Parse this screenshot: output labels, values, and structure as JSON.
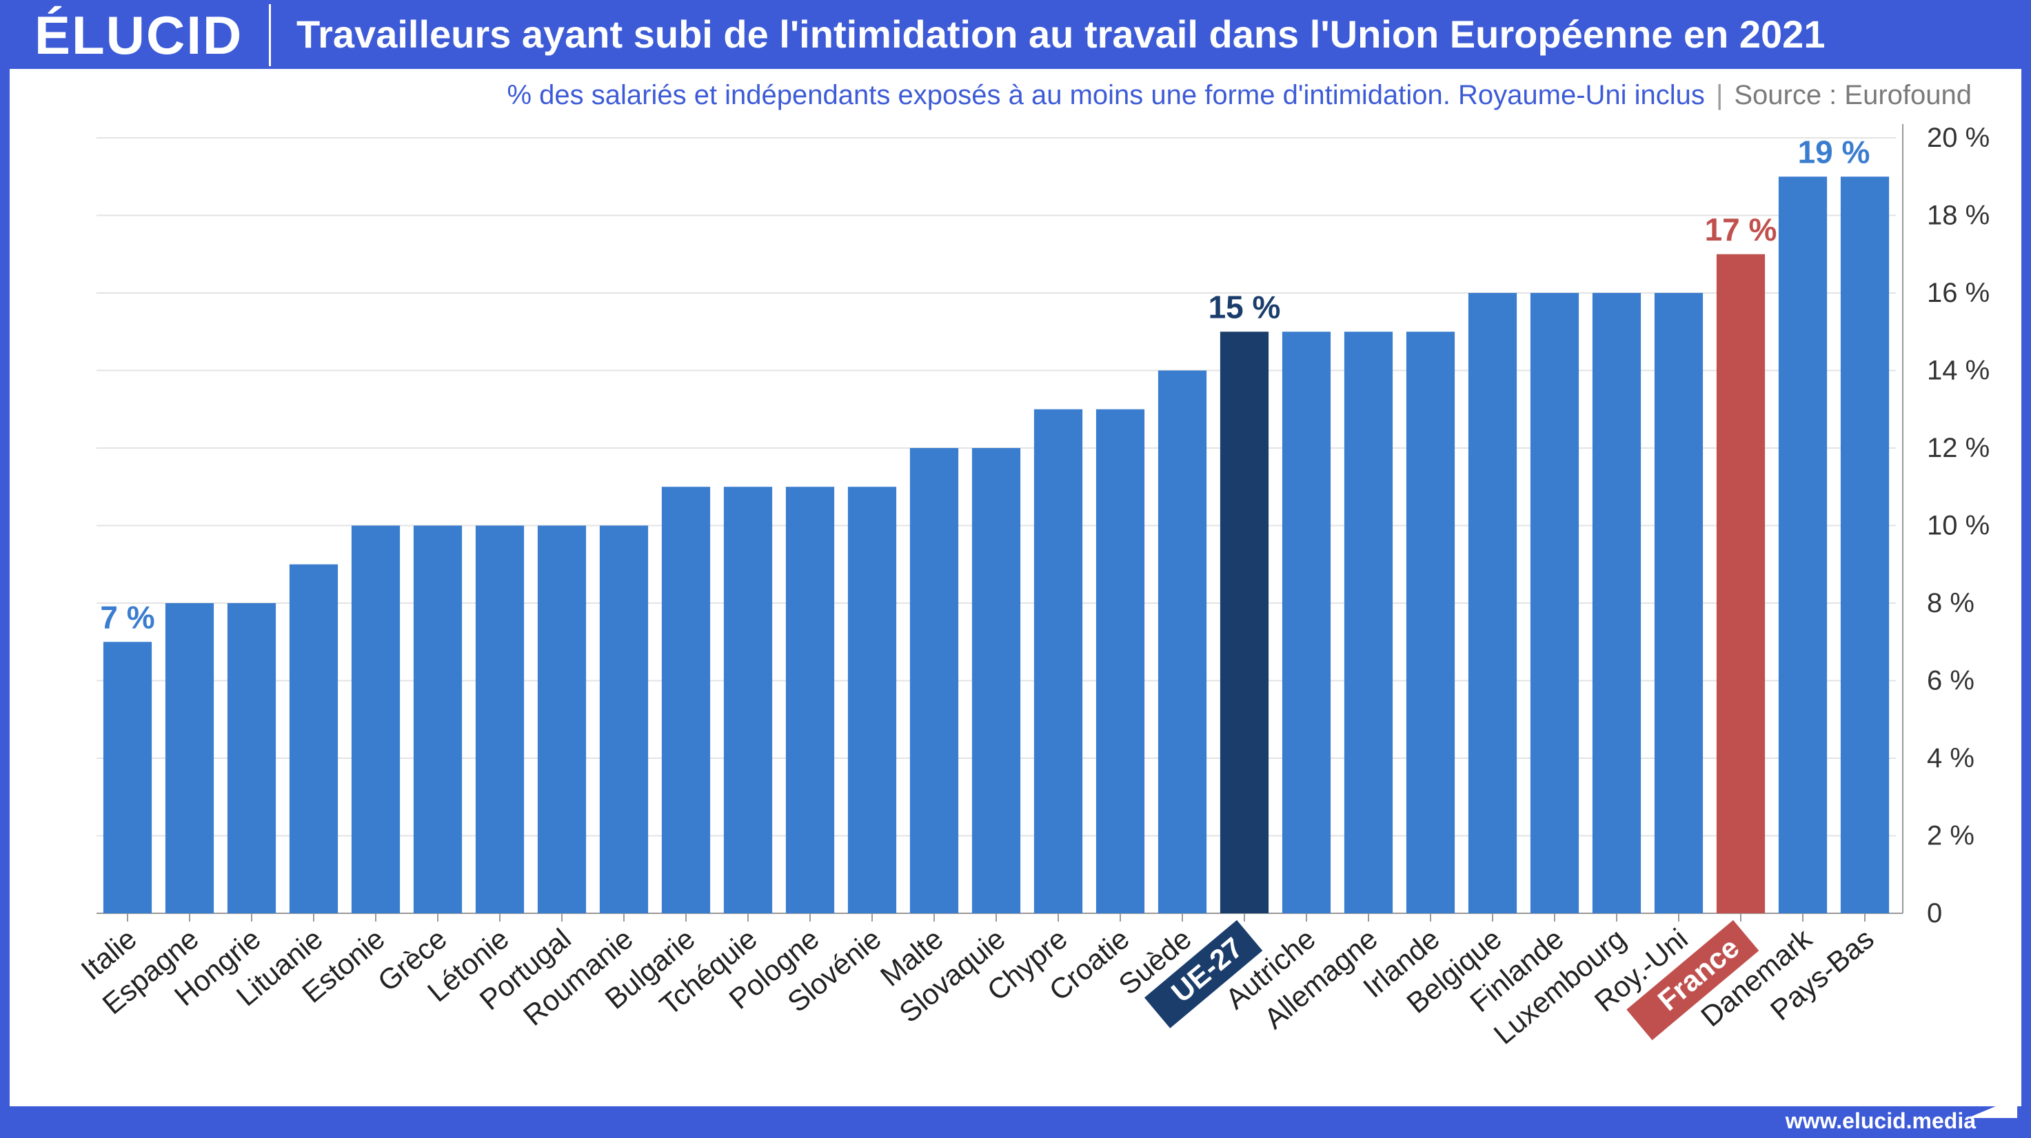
{
  "brand": {
    "logo": "ÉLUCID",
    "url": "www.elucid.media"
  },
  "header": {
    "title": "Travailleurs ayant subi de l'intimidation au travail dans l'Union Européenne en 2021"
  },
  "subtitle": {
    "description": "% des salariés et indépendants exposés à au moins une forme d'intimidation. Royaume-Uni inclus",
    "separator": "|",
    "source": "Source : Eurofound"
  },
  "colors": {
    "frame": "#3d5bd6",
    "bar": "#3a7dcf",
    "highlight_eu": "#1a3d6b",
    "highlight_france": "#c0504d",
    "label_default": "#3a7dcf"
  },
  "chart_data": {
    "type": "bar",
    "categories": [
      "Italie",
      "Espagne",
      "Hongrie",
      "Lituanie",
      "Estonie",
      "Grèce",
      "Létonie",
      "Portugal",
      "Roumanie",
      "Bulgarie",
      "Tchéquie",
      "Pologne",
      "Slovénie",
      "Malte",
      "Slovaquie",
      "Chypre",
      "Croatie",
      "Suède",
      "UE-27",
      "Autriche",
      "Allemagne",
      "Irlande",
      "Belgique",
      "Finlande",
      "Luxembourg",
      "Roy.-Uni",
      "France",
      "Danemark",
      "Pays-Bas"
    ],
    "values": [
      7,
      8,
      8,
      9,
      10,
      10,
      10,
      10,
      10,
      11,
      11,
      11,
      11,
      12,
      12,
      13,
      13,
      14,
      15,
      15,
      15,
      15,
      16,
      16,
      16,
      16,
      17,
      19,
      19
    ],
    "ylim": [
      0,
      20
    ],
    "yticks": [
      0,
      2,
      4,
      6,
      8,
      10,
      12,
      14,
      16,
      18,
      20
    ],
    "ytick_labels": [
      "0",
      "2 %",
      "4 %",
      "6 %",
      "8 %",
      "10 %",
      "12 %",
      "14 %",
      "16 %",
      "18 %",
      "20 %"
    ],
    "y_axis_position": "right",
    "grid": true,
    "highlights": {
      "UE-27": "#1a3d6b",
      "France": "#c0504d"
    },
    "data_labels": [
      {
        "category": "Italie",
        "text": "7 %"
      },
      {
        "category": "UE-27",
        "text": "15 %"
      },
      {
        "category": "France",
        "text": "17 %"
      },
      {
        "category": "Danemark",
        "text": "19 %"
      }
    ]
  }
}
